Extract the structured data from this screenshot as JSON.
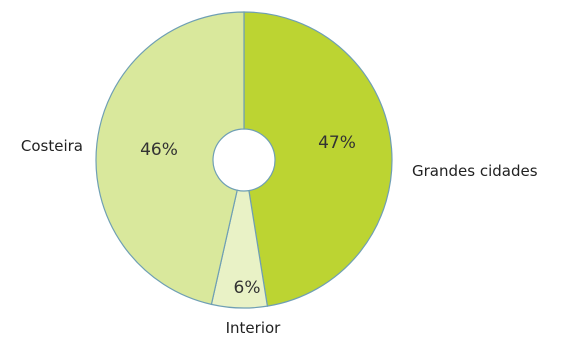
{
  "chart_data": {
    "type": "pie",
    "donut": true,
    "categories": [
      "Grandes cidades",
      "Interior",
      "Costeira"
    ],
    "values": [
      47,
      6,
      46
    ],
    "value_labels": [
      "47%",
      "6%",
      "46%"
    ],
    "colors": [
      "#bcd432",
      "#e9f2c6",
      "#d9e89c"
    ],
    "edge_color": "#6f9fb4",
    "title": "",
    "legend": "none"
  }
}
